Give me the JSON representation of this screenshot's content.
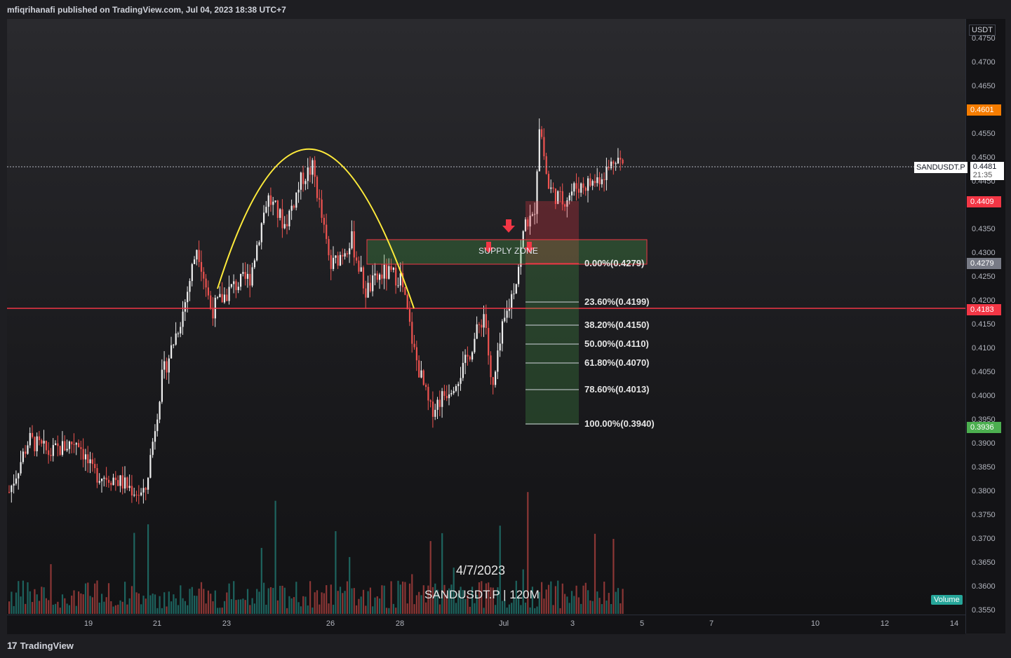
{
  "header": {
    "published_line": "mfiqrihanafi published on TradingView.com, Jul 04, 2023 18:38 UTC+7"
  },
  "footer": {
    "brand": "TradingView",
    "logo_icon": "tradingview-logo-icon"
  },
  "price_axis": {
    "currency": "USDT",
    "ticks": [
      "0.4750",
      "0.4700",
      "0.4650",
      "0.4600",
      "0.4550",
      "0.4500",
      "0.4450",
      "0.4400",
      "0.4350",
      "0.4300",
      "0.4250",
      "0.4200",
      "0.4150",
      "0.4100",
      "0.4050",
      "0.4000",
      "0.3950",
      "0.3900",
      "0.3850",
      "0.3800",
      "0.3750",
      "0.3700",
      "0.3650",
      "0.3600",
      "0.3550"
    ],
    "tags": [
      {
        "value": "0.4601",
        "color": "#f57c00"
      },
      {
        "value": "0.4409",
        "color": "#f23645"
      },
      {
        "value": "0.4279",
        "color": "#787b86"
      },
      {
        "value": "0.4183",
        "color": "#f23645"
      },
      {
        "value": "0.3936",
        "color": "#4caf50"
      }
    ],
    "symbol_tag": {
      "symbol": "SANDUSDT.P",
      "price": "0.4481",
      "countdown": "21:35"
    }
  },
  "time_axis": {
    "labels": [
      "19",
      "21",
      "23",
      "26",
      "28",
      "Jul",
      "3",
      "5",
      "7",
      "10",
      "12",
      "14"
    ]
  },
  "annotations": {
    "supply_zone": "SUPPLY ZONE",
    "fib_levels": [
      "0.00%(0.4279)",
      "23.60%(0.4199)",
      "38.20%(0.4150)",
      "50.00%(0.4110)",
      "61.80%(0.4070)",
      "78.60%(0.4013)",
      "100.00%(0.3940)"
    ],
    "watermark_date": "4/7/2023",
    "watermark_symbol": "SANDUSDT.P | 120M",
    "volume_badge": "Volume"
  },
  "colors": {
    "up": "#26a69a",
    "down": "#ef5350",
    "arc": "#ffeb3b",
    "support_line": "#f23645"
  },
  "chart_data": {
    "type": "candlestick",
    "symbol": "SANDUSDT.P",
    "interval": "120M",
    "ylim": [
      0.3535,
      0.4765
    ],
    "x": [
      "18",
      "19",
      "20",
      "21",
      "22",
      "23",
      "24",
      "25",
      "26",
      "27",
      "28",
      "29",
      "30",
      "Jul",
      "2",
      "3",
      "4"
    ],
    "close_approx": [
      0.384,
      0.389,
      0.381,
      0.392,
      0.414,
      0.42,
      0.44,
      0.443,
      0.44,
      0.424,
      0.422,
      0.4,
      0.404,
      0.422,
      0.443,
      0.446,
      0.448
    ],
    "last_price": 0.4481,
    "levels": {
      "support": 0.4183,
      "supply_zone": [
        0.4279,
        0.4332
      ]
    }
  }
}
